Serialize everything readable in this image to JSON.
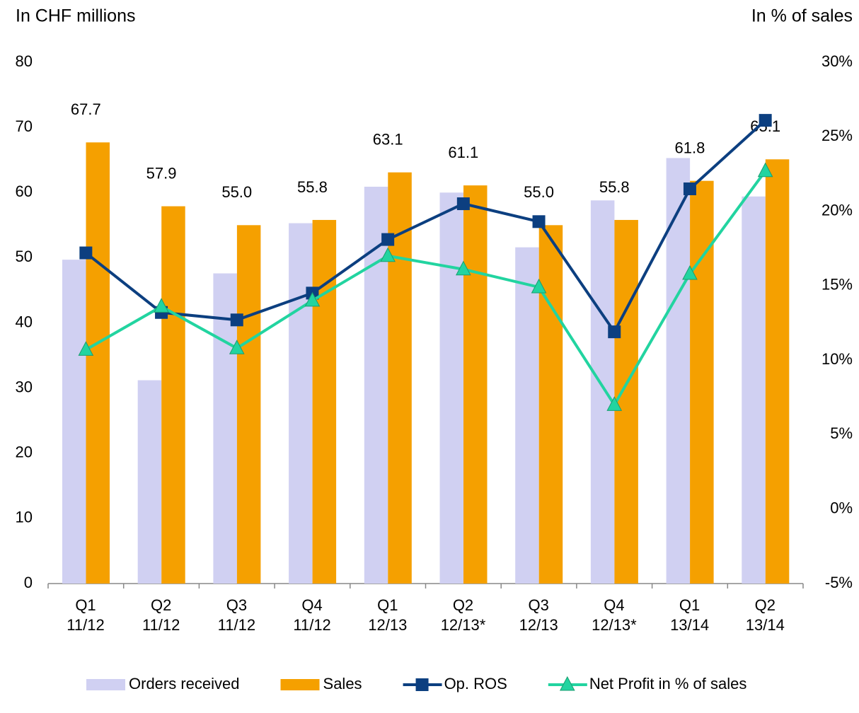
{
  "chart_data": {
    "type": "bar_line",
    "y_axis_label": "In CHF millions",
    "y2_axis_label": "In % of sales",
    "categories": [
      "Q1\n11/12",
      "Q2\n11/12",
      "Q3\n11/12",
      "Q4\n11/12",
      "Q1\n12/13",
      "Q2\n12/13*",
      "Q3\n12/13",
      "Q4\n12/13*",
      "Q1\n13/14",
      "Q2\n13/14"
    ],
    "series": [
      {
        "name": "Orders received",
        "type": "bar",
        "color": "#d0d0f2",
        "values": [
          49.7,
          31.2,
          47.6,
          55.3,
          60.9,
          60.0,
          51.6,
          58.8,
          65.3,
          59.4
        ]
      },
      {
        "name": "Sales",
        "type": "bar",
        "color": "#f5a000",
        "values": [
          67.7,
          57.9,
          55.0,
          55.8,
          63.1,
          61.1,
          55.0,
          55.8,
          61.8,
          65.1
        ],
        "value_labels": [
          "67.7",
          "57.9",
          "55.0",
          "55.8",
          "63.1",
          "61.1",
          "55.0",
          "55.8",
          "61.8",
          "65.1"
        ]
      },
      {
        "name": "Op. ROS",
        "type": "line",
        "axis": "y2",
        "marker": "square",
        "color": "#0c3f80",
        "values": [
          17.2,
          13.2,
          12.7,
          14.5,
          18.1,
          20.5,
          19.3,
          11.9,
          21.5,
          26.1
        ]
      },
      {
        "name": "Net Profit in % of sales",
        "type": "line",
        "axis": "y2",
        "marker": "triangle",
        "color": "#22d4a0",
        "values": [
          10.7,
          13.6,
          10.8,
          14.0,
          17.0,
          16.1,
          14.9,
          7.0,
          15.8,
          22.7
        ]
      }
    ],
    "ylim": [
      0,
      80
    ],
    "yticks": [
      0,
      10,
      20,
      30,
      40,
      50,
      60,
      70,
      80
    ],
    "y2lim": [
      -5,
      30
    ],
    "y2ticks": [
      {
        "value": -5,
        "label": "-5%"
      },
      {
        "value": 0,
        "label": "0%"
      },
      {
        "value": 5,
        "label": "5%"
      },
      {
        "value": 10,
        "label": "10%"
      },
      {
        "value": 15,
        "label": "15%"
      },
      {
        "value": 20,
        "label": "20%"
      },
      {
        "value": 25,
        "label": "25%"
      },
      {
        "value": 30,
        "label": "30%"
      }
    ]
  }
}
